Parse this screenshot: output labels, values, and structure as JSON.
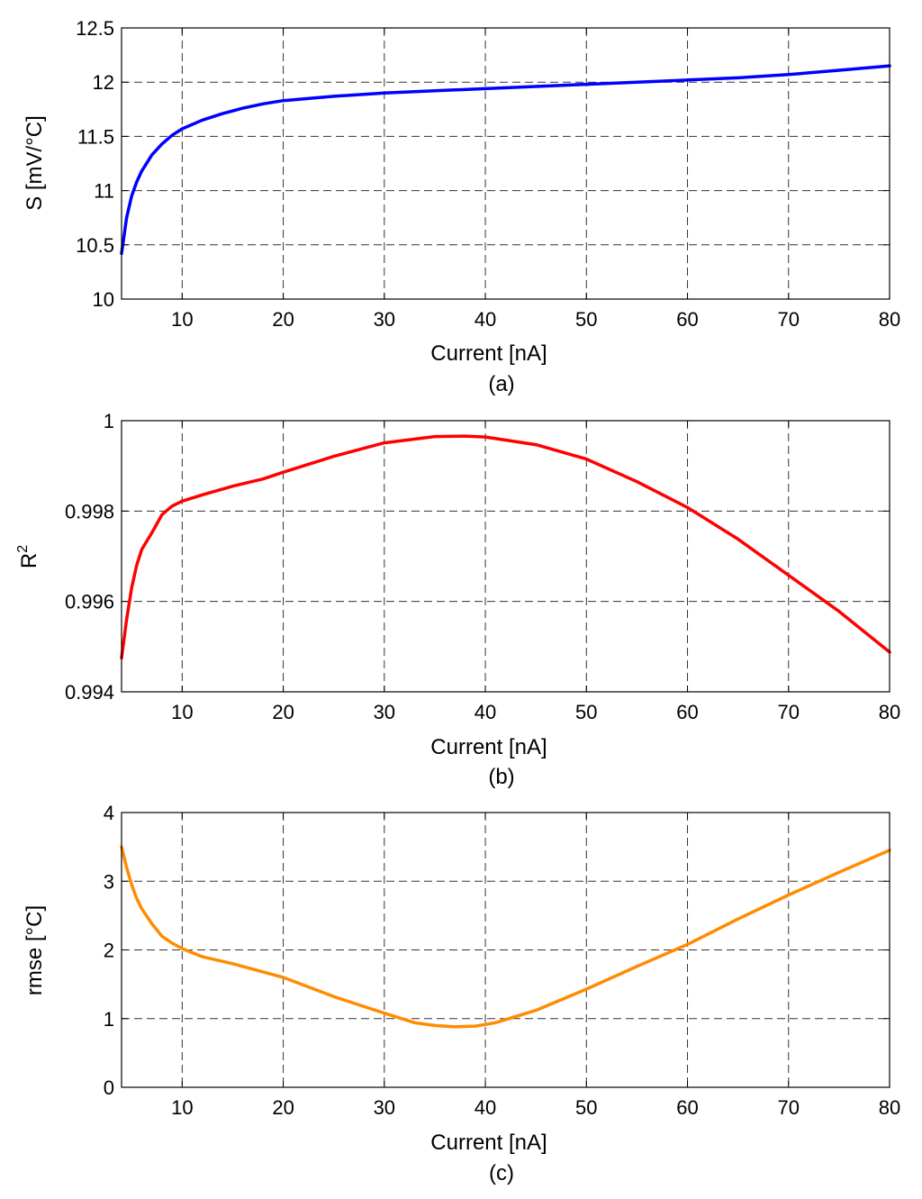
{
  "chart_data": [
    {
      "type": "line",
      "caption": "(a)",
      "xlabel": "Current [nA]",
      "ylabel": "S [mV/°C]",
      "xlim": [
        4,
        80
      ],
      "ylim": [
        10,
        12.5
      ],
      "xticks": [
        10,
        20,
        30,
        40,
        50,
        60,
        70,
        80
      ],
      "yticks": [
        10,
        10.5,
        11,
        11.5,
        12,
        12.5
      ],
      "ytick_labels": [
        "10",
        "10.5",
        "11",
        "11.5",
        "12",
        "12.5"
      ],
      "grid": true,
      "series": [
        {
          "color": "#0000ff",
          "x": [
            4,
            4.5,
            5,
            5.5,
            6,
            7,
            8,
            9,
            10,
            12,
            14,
            16,
            18,
            20,
            25,
            30,
            35,
            40,
            45,
            50,
            55,
            60,
            65,
            70,
            75,
            80
          ],
          "y": [
            10.42,
            10.75,
            10.95,
            11.08,
            11.18,
            11.33,
            11.43,
            11.51,
            11.57,
            11.65,
            11.71,
            11.76,
            11.8,
            11.83,
            11.87,
            11.9,
            11.92,
            11.94,
            11.96,
            11.98,
            12.0,
            12.02,
            12.04,
            12.07,
            12.11,
            12.15
          ]
        }
      ]
    },
    {
      "type": "line",
      "caption": "(b)",
      "xlabel": "Current [nA]",
      "ylabel": "R",
      "ylabel_sup": "2",
      "xlim": [
        4,
        80
      ],
      "ylim": [
        0.994,
        1
      ],
      "xticks": [
        10,
        20,
        30,
        40,
        50,
        60,
        70,
        80
      ],
      "yticks": [
        0.994,
        0.996,
        0.998,
        1
      ],
      "ytick_labels": [
        "0.994",
        "0.996",
        "0.998",
        "1"
      ],
      "grid": true,
      "series": [
        {
          "color": "#ff0000",
          "x": [
            4,
            4.5,
            5,
            5.5,
            6,
            7,
            8,
            9,
            10,
            12,
            15,
            18,
            20,
            25,
            30,
            35,
            38,
            40,
            45,
            50,
            55,
            60,
            65,
            70,
            75,
            80
          ],
          "y": [
            0.99475,
            0.9956,
            0.9963,
            0.9968,
            0.99715,
            0.99752,
            0.99792,
            0.99811,
            0.99822,
            0.99836,
            0.99855,
            0.99871,
            0.99886,
            0.99921,
            0.99951,
            0.99965,
            0.99966,
            0.99964,
            0.99947,
            0.99915,
            0.99865,
            0.99808,
            0.99738,
            0.99658,
            0.99578,
            0.99488
          ]
        }
      ]
    },
    {
      "type": "line",
      "caption": "(c)",
      "xlabel": "Current [nA]",
      "ylabel": "rmse [°C]",
      "xlim": [
        4,
        80
      ],
      "ylim": [
        0,
        4
      ],
      "xticks": [
        10,
        20,
        30,
        40,
        50,
        60,
        70,
        80
      ],
      "yticks": [
        0,
        1,
        2,
        3,
        4
      ],
      "ytick_labels": [
        "0",
        "1",
        "2",
        "3",
        "4"
      ],
      "grid": true,
      "series": [
        {
          "color": "#ff8c00",
          "x": [
            4,
            4.5,
            5,
            5.5,
            6,
            7,
            8,
            9,
            10,
            12,
            15,
            18,
            20,
            25,
            30,
            33,
            35,
            37,
            39,
            41,
            45,
            50,
            55,
            60,
            65,
            70,
            75,
            80
          ],
          "y": [
            3.5,
            3.2,
            2.95,
            2.75,
            2.6,
            2.38,
            2.2,
            2.1,
            2.02,
            1.9,
            1.8,
            1.68,
            1.6,
            1.32,
            1.08,
            0.94,
            0.9,
            0.88,
            0.89,
            0.94,
            1.12,
            1.43,
            1.76,
            2.08,
            2.45,
            2.8,
            3.13,
            3.45
          ]
        }
      ]
    }
  ]
}
